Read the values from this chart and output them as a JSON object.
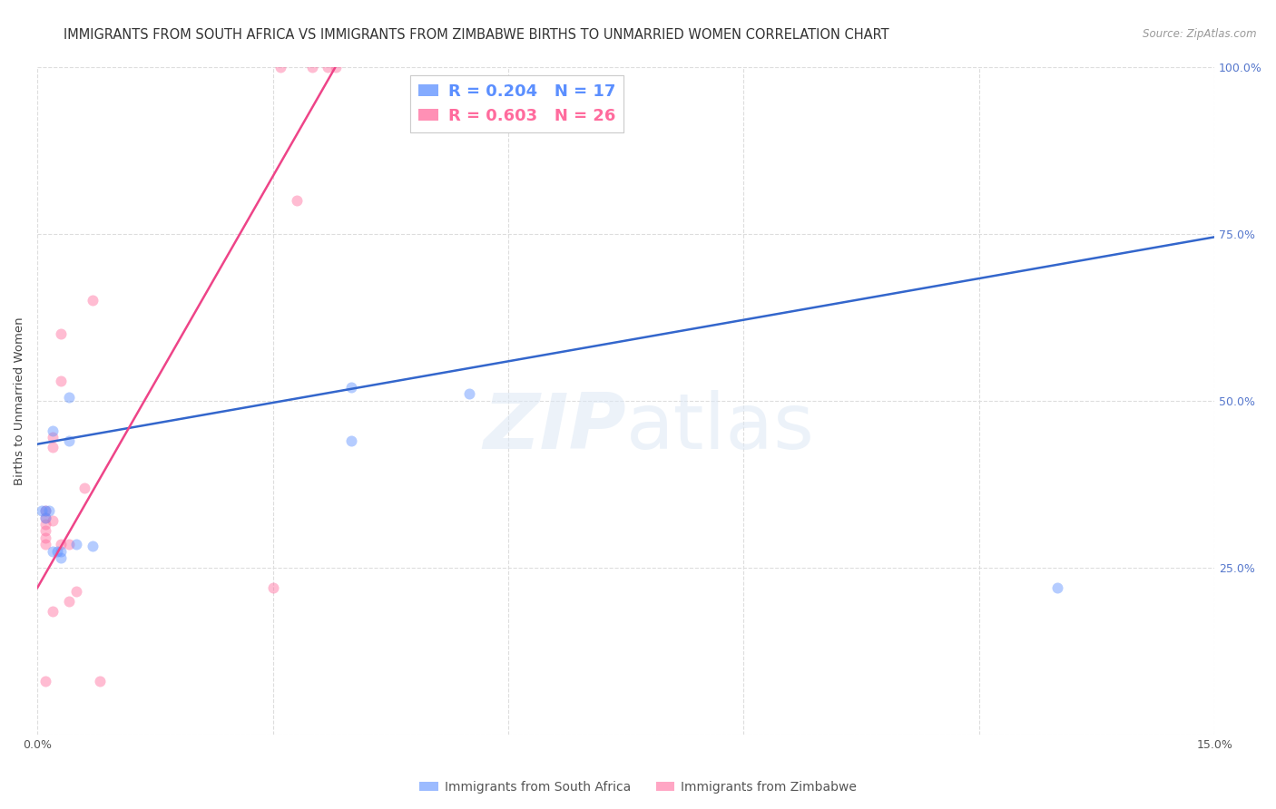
{
  "title": "IMMIGRANTS FROM SOUTH AFRICA VS IMMIGRANTS FROM ZIMBABWE BIRTHS TO UNMARRIED WOMEN CORRELATION CHART",
  "source": "Source: ZipAtlas.com",
  "ylabel": "Births to Unmarried Women",
  "watermark": "ZIPatlas",
  "xmin": 0.0,
  "xmax": 0.15,
  "ymin": 0.0,
  "ymax": 1.0,
  "xtick_vals": [
    0.0,
    0.03,
    0.06,
    0.09,
    0.12,
    0.15
  ],
  "xticklabels": [
    "0.0%",
    "",
    "",
    "",
    "",
    "15.0%"
  ],
  "ytick_vals": [
    0.0,
    0.25,
    0.5,
    0.75,
    1.0
  ],
  "yticklabels_right": [
    "",
    "25.0%",
    "50.0%",
    "75.0%",
    "100.0%"
  ],
  "legend_entries": [
    {
      "label_r": "R = 0.204",
      "label_n": "N = 17",
      "color": "#5b8fff"
    },
    {
      "label_r": "R = 0.603",
      "label_n": "N = 26",
      "color": "#ff6b9d"
    }
  ],
  "legend_bottom": [
    {
      "label": "Immigrants from South Africa",
      "color": "#5b8fff"
    },
    {
      "label": "Immigrants from Zimbabwe",
      "color": "#ff6b9d"
    }
  ],
  "south_africa_points": [
    [
      0.001,
      0.335
    ],
    [
      0.001,
      0.325
    ],
    [
      0.0015,
      0.335
    ],
    [
      0.002,
      0.455
    ],
    [
      0.002,
      0.275
    ],
    [
      0.0025,
      0.275
    ],
    [
      0.003,
      0.275
    ],
    [
      0.003,
      0.265
    ],
    [
      0.004,
      0.44
    ],
    [
      0.004,
      0.505
    ],
    [
      0.005,
      0.285
    ],
    [
      0.007,
      0.283
    ],
    [
      0.04,
      0.44
    ],
    [
      0.04,
      0.52
    ],
    [
      0.055,
      0.51
    ],
    [
      0.13,
      0.22
    ],
    [
      0.0005,
      0.335
    ]
  ],
  "zimbabwe_points": [
    [
      0.001,
      0.335
    ],
    [
      0.001,
      0.325
    ],
    [
      0.001,
      0.315
    ],
    [
      0.001,
      0.305
    ],
    [
      0.001,
      0.295
    ],
    [
      0.001,
      0.285
    ],
    [
      0.002,
      0.445
    ],
    [
      0.002,
      0.43
    ],
    [
      0.002,
      0.32
    ],
    [
      0.002,
      0.185
    ],
    [
      0.003,
      0.6
    ],
    [
      0.003,
      0.53
    ],
    [
      0.003,
      0.285
    ],
    [
      0.004,
      0.285
    ],
    [
      0.004,
      0.2
    ],
    [
      0.005,
      0.215
    ],
    [
      0.006,
      0.37
    ],
    [
      0.007,
      0.65
    ],
    [
      0.008,
      0.08
    ],
    [
      0.03,
      0.22
    ],
    [
      0.031,
      1.0
    ],
    [
      0.033,
      0.8
    ],
    [
      0.035,
      1.0
    ],
    [
      0.037,
      1.0
    ],
    [
      0.038,
      1.0
    ],
    [
      0.001,
      0.08
    ]
  ],
  "sa_line_x": [
    0.0,
    0.15
  ],
  "sa_line_y": [
    0.435,
    0.745
  ],
  "zim_line_x": [
    0.0,
    0.038
  ],
  "zim_line_y": [
    0.22,
    1.0
  ],
  "sa_color": "#5b8fff",
  "zim_color": "#ff6b9d",
  "sa_line_color": "#3366cc",
  "zim_line_color": "#ee4488",
  "background_color": "#ffffff",
  "grid_color": "#dddddd",
  "title_fontsize": 10.5,
  "axis_label_fontsize": 9.5,
  "tick_fontsize": 9,
  "marker_size": 75,
  "marker_alpha": 0.45,
  "line_width": 1.8
}
